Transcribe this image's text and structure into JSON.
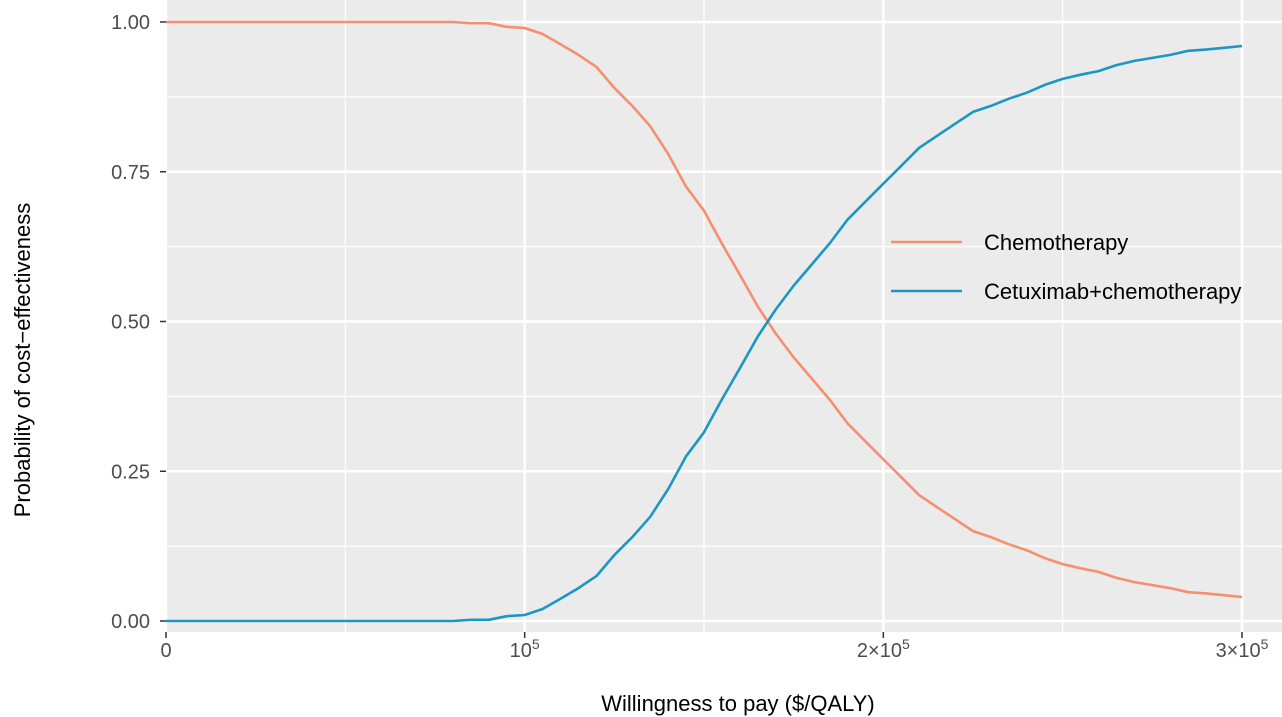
{
  "chart_data": {
    "type": "line",
    "title": "",
    "xlabel": "Willingness to pay ($/QALY)",
    "ylabel": "Probability of cost−effectiveness",
    "xlim": [
      0,
      300000
    ],
    "ylim": [
      0,
      1
    ],
    "grid": true,
    "legend_position": "right",
    "x_ticks": [
      {
        "value": 0,
        "label": "0"
      },
      {
        "value": 100000,
        "base": "10",
        "exp": "5"
      },
      {
        "value": 200000,
        "base": "2×10",
        "exp": "5"
      },
      {
        "value": 300000,
        "base": "3×10",
        "exp": "5"
      }
    ],
    "y_ticks": [
      {
        "value": 0,
        "label": "0.00"
      },
      {
        "value": 0.25,
        "label": "0.25"
      },
      {
        "value": 0.5,
        "label": "0.50"
      },
      {
        "value": 0.75,
        "label": "0.75"
      },
      {
        "value": 1,
        "label": "1.00"
      }
    ],
    "x": [
      0,
      10000,
      20000,
      30000,
      40000,
      50000,
      60000,
      70000,
      80000,
      85000,
      90000,
      95000,
      100000,
      105000,
      110000,
      115000,
      120000,
      125000,
      130000,
      135000,
      140000,
      145000,
      150000,
      155000,
      160000,
      165000,
      170000,
      175000,
      180000,
      185000,
      190000,
      195000,
      200000,
      205000,
      210000,
      215000,
      220000,
      225000,
      230000,
      235000,
      240000,
      245000,
      250000,
      255000,
      260000,
      265000,
      270000,
      275000,
      280000,
      285000,
      290000,
      295000,
      300000
    ],
    "series": [
      {
        "name": "Chemotherapy",
        "color": "#f4906e",
        "values": [
          1,
          1,
          1,
          1,
          1,
          1,
          1,
          1,
          1,
          0.998,
          0.998,
          0.992,
          0.99,
          0.98,
          0.963,
          0.945,
          0.925,
          0.89,
          0.86,
          0.826,
          0.78,
          0.725,
          0.685,
          0.63,
          0.578,
          0.525,
          0.48,
          0.44,
          0.405,
          0.37,
          0.33,
          0.3,
          0.27,
          0.24,
          0.21,
          0.19,
          0.17,
          0.15,
          0.14,
          0.128,
          0.118,
          0.105,
          0.095,
          0.088,
          0.082,
          0.072,
          0.065,
          0.06,
          0.055,
          0.048,
          0.046,
          0.043,
          0.04
        ]
      },
      {
        "name": "Cetuximab+chemotherapy",
        "color": "#1a97c2",
        "values": [
          0,
          0,
          0,
          0,
          0,
          0,
          0,
          0,
          0,
          0.002,
          0.002,
          0.008,
          0.01,
          0.02,
          0.037,
          0.055,
          0.075,
          0.11,
          0.14,
          0.174,
          0.22,
          0.275,
          0.315,
          0.37,
          0.422,
          0.475,
          0.52,
          0.56,
          0.595,
          0.63,
          0.67,
          0.7,
          0.73,
          0.76,
          0.79,
          0.81,
          0.83,
          0.85,
          0.86,
          0.872,
          0.882,
          0.895,
          0.905,
          0.912,
          0.918,
          0.928,
          0.935,
          0.94,
          0.945,
          0.952,
          0.954,
          0.957,
          0.96
        ]
      }
    ]
  }
}
